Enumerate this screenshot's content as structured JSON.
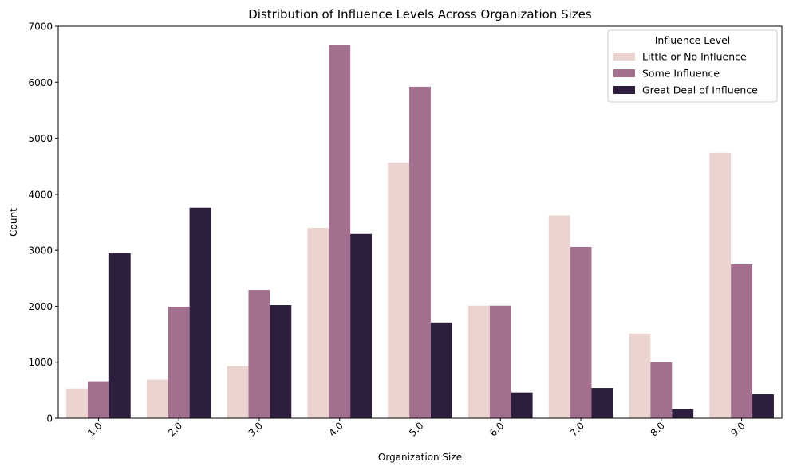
{
  "chart_data": {
    "type": "bar",
    "title": "Distribution of Influence Levels Across Organization Sizes",
    "xlabel": "Organization Size",
    "ylabel": "Count",
    "categories": [
      "1.0",
      "2.0",
      "3.0",
      "4.0",
      "5.0",
      "6.0",
      "7.0",
      "8.0",
      "9.0"
    ],
    "ylim": [
      0,
      7000
    ],
    "yticks": [
      0,
      1000,
      2000,
      3000,
      4000,
      5000,
      6000,
      7000
    ],
    "grid": false,
    "legend": {
      "title": "Influence Level",
      "placement": "top-right"
    },
    "series": [
      {
        "name": "Little or No Influence",
        "color": "#ebd3d0",
        "values": [
          530,
          690,
          930,
          3400,
          4570,
          2010,
          3620,
          1510,
          4740
        ]
      },
      {
        "name": "Some Influence",
        "color": "#a2708e",
        "values": [
          660,
          1990,
          2290,
          6670,
          5920,
          2010,
          3060,
          1000,
          2750
        ]
      },
      {
        "name": "Great Deal of Influence",
        "color": "#2d1e3e",
        "values": [
          2950,
          3760,
          2020,
          3290,
          1710,
          460,
          540,
          160,
          430
        ]
      }
    ]
  }
}
